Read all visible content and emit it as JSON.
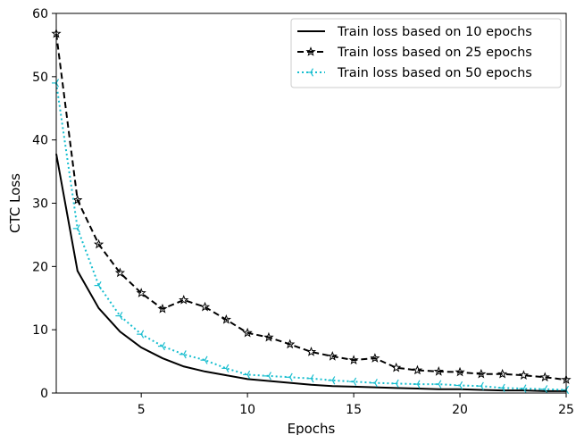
{
  "chart_data": {
    "type": "line",
    "title": "",
    "xlabel": "Epochs",
    "ylabel": "CTC Loss",
    "xlim": [
      1,
      25
    ],
    "ylim": [
      0,
      60
    ],
    "xticks": [
      5,
      10,
      15,
      20,
      25
    ],
    "yticks": [
      0,
      10,
      20,
      30,
      40,
      50,
      60
    ],
    "grid": false,
    "legend_position": "top-right",
    "x": [
      1,
      2,
      3,
      4,
      5,
      6,
      7,
      8,
      9,
      10,
      11,
      12,
      13,
      14,
      15,
      16,
      17,
      18,
      19,
      20,
      21,
      22,
      23,
      24,
      25
    ],
    "series": [
      {
        "name": "Train loss based on 10 epochs",
        "color": "#000000",
        "line_style": "solid",
        "marker": "none",
        "values": [
          37.8,
          19.3,
          13.4,
          9.7,
          7.2,
          5.5,
          4.2,
          3.4,
          2.8,
          2.2,
          1.9,
          1.6,
          1.3,
          1.1,
          1.0,
          0.9,
          0.8,
          0.7,
          0.6,
          0.6,
          0.5,
          0.4,
          0.4,
          0.3,
          0.3
        ]
      },
      {
        "name": "Train loss based on 25 epochs",
        "color": "#000000",
        "line_style": "dashed",
        "marker": "star",
        "values": [
          56.8,
          30.5,
          23.5,
          19.0,
          15.8,
          13.3,
          14.7,
          13.6,
          11.6,
          9.5,
          8.8,
          7.7,
          6.5,
          5.8,
          5.2,
          5.5,
          4.0,
          3.6,
          3.4,
          3.3,
          3.0,
          3.0,
          2.8,
          2.5,
          2.1
        ]
      },
      {
        "name": "Train loss based on 50 epochs",
        "color": "#17becf",
        "line_style": "dotted",
        "marker": "tri",
        "values": [
          49.0,
          26.0,
          17.0,
          12.2,
          9.3,
          7.4,
          6.1,
          5.2,
          3.9,
          2.9,
          2.7,
          2.5,
          2.3,
          2.0,
          1.8,
          1.6,
          1.5,
          1.4,
          1.4,
          1.2,
          1.1,
          0.8,
          0.7,
          0.6,
          0.5
        ]
      }
    ]
  }
}
